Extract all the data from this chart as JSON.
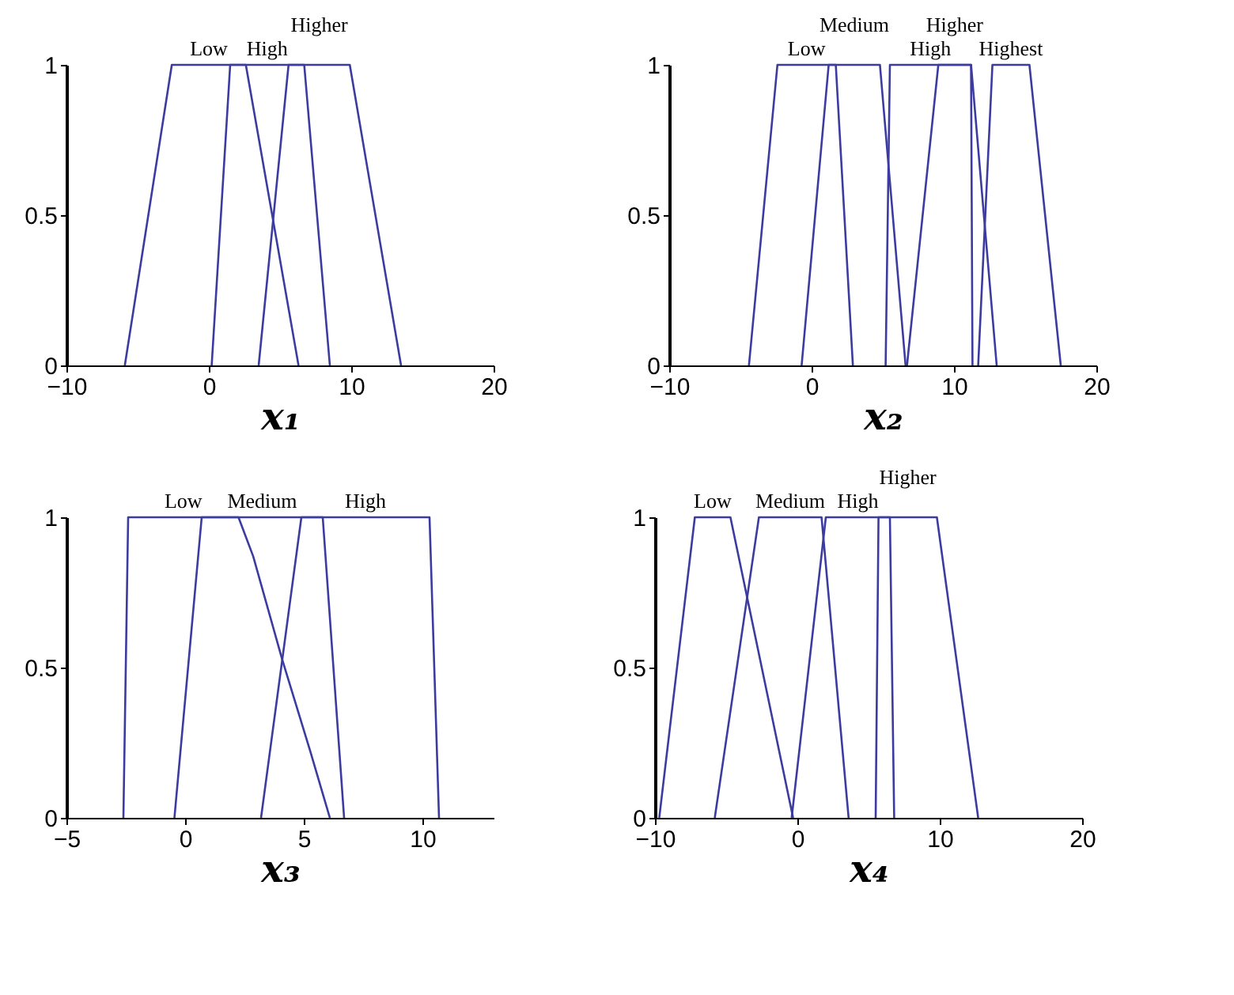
{
  "chart_data": [
    {
      "type": "line",
      "xlabel": "x₁",
      "xlim": [
        -10,
        20
      ],
      "xticks": [
        -10,
        0,
        10,
        20
      ],
      "ylim": [
        0,
        1
      ],
      "yticks": [
        0,
        0.5,
        1
      ],
      "grid": false,
      "series": [
        {
          "name": "Low",
          "color": "#3c3ca0",
          "x": [
            -5.9,
            -2.6,
            2.6,
            6.3
          ],
          "values": [
            0,
            1,
            1,
            0
          ]
        },
        {
          "name": "High",
          "color": "#3c3ca0",
          "x": [
            0.2,
            1.5,
            6.7,
            8.5
          ],
          "values": [
            0,
            1,
            1,
            0
          ]
        },
        {
          "name": "Higher",
          "color": "#3c3ca0",
          "x": [
            3.5,
            5.6,
            9.9,
            13.5
          ],
          "values": [
            0,
            1,
            1,
            0
          ]
        }
      ]
    },
    {
      "type": "line",
      "xlabel": "x₂",
      "xlim": [
        -10,
        20
      ],
      "xticks": [
        -10,
        0,
        10,
        20
      ],
      "ylim": [
        0,
        1
      ],
      "yticks": [
        0,
        0.5,
        1
      ],
      "grid": false,
      "series": [
        {
          "name": "Low",
          "color": "#3c3ca0",
          "x": [
            -4.4,
            -2.4,
            1.7,
            2.9
          ],
          "values": [
            0,
            1,
            1,
            0
          ]
        },
        {
          "name": "Medium",
          "color": "#3c3ca0",
          "x": [
            -0.7,
            1.2,
            4.8,
            6.6
          ],
          "values": [
            0,
            1,
            1,
            0
          ]
        },
        {
          "name": "High",
          "color": "#3c3ca0",
          "x": [
            5.2,
            5.5,
            11.2,
            13.0
          ],
          "values": [
            0,
            1,
            1,
            0
          ]
        },
        {
          "name": "Higher",
          "color": "#3c3ca0",
          "x": [
            6.7,
            8.9,
            11.2,
            11.3
          ],
          "values": [
            0,
            1,
            1,
            0
          ]
        },
        {
          "name": "Highest",
          "color": "#3c3ca0",
          "x": [
            11.7,
            12.7,
            15.3,
            17.5
          ],
          "values": [
            0,
            1,
            1,
            0
          ]
        }
      ]
    },
    {
      "type": "line",
      "xlabel": "x₃",
      "xlim": [
        -5,
        13
      ],
      "xticks": [
        -5,
        0,
        5,
        10
      ],
      "ylim": [
        0,
        1
      ],
      "yticks": [
        0,
        0.5,
        1
      ],
      "grid": false,
      "series": [
        {
          "name": "Low",
          "color": "#3c3ca0",
          "x": [
            -2.6,
            -2.4,
            2.25,
            2.87,
            4.08,
            5.28,
            6.1
          ],
          "values": [
            0,
            1,
            1,
            0.87,
            0.53,
            0.22,
            0
          ]
        },
        {
          "name": "Medium",
          "color": "#3c3ca0",
          "x": [
            -0.45,
            0.7,
            5.8,
            6.7
          ],
          "values": [
            0,
            1,
            1,
            0
          ]
        },
        {
          "name": "High",
          "color": "#3c3ca0",
          "x": [
            3.2,
            4.9,
            10.3,
            10.7
          ],
          "values": [
            0,
            1,
            1,
            0
          ]
        }
      ]
    },
    {
      "type": "line",
      "xlabel": "x₄",
      "xlim": [
        -10,
        20
      ],
      "xticks": [
        -10,
        0,
        10,
        20
      ],
      "ylim": [
        0,
        1
      ],
      "yticks": [
        0,
        0.5,
        1
      ],
      "grid": false,
      "series": [
        {
          "name": "Low",
          "color": "#3c3ca0",
          "x": [
            -9.7,
            -7.2,
            -4.7,
            -0.3
          ],
          "values": [
            0,
            1,
            1,
            0
          ]
        },
        {
          "name": "Medium",
          "color": "#3c3ca0",
          "x": [
            -5.8,
            -2.7,
            1.7,
            3.6
          ],
          "values": [
            0,
            1,
            1,
            0
          ]
        },
        {
          "name": "High",
          "color": "#3c3ca0",
          "x": [
            -0.4,
            2.0,
            6.5,
            6.8
          ],
          "values": [
            0,
            1,
            1,
            0
          ]
        },
        {
          "name": "Higher",
          "color": "#3c3ca0",
          "x": [
            5.5,
            5.7,
            9.8,
            12.7
          ],
          "values": [
            0,
            1,
            1,
            0
          ]
        }
      ]
    }
  ]
}
